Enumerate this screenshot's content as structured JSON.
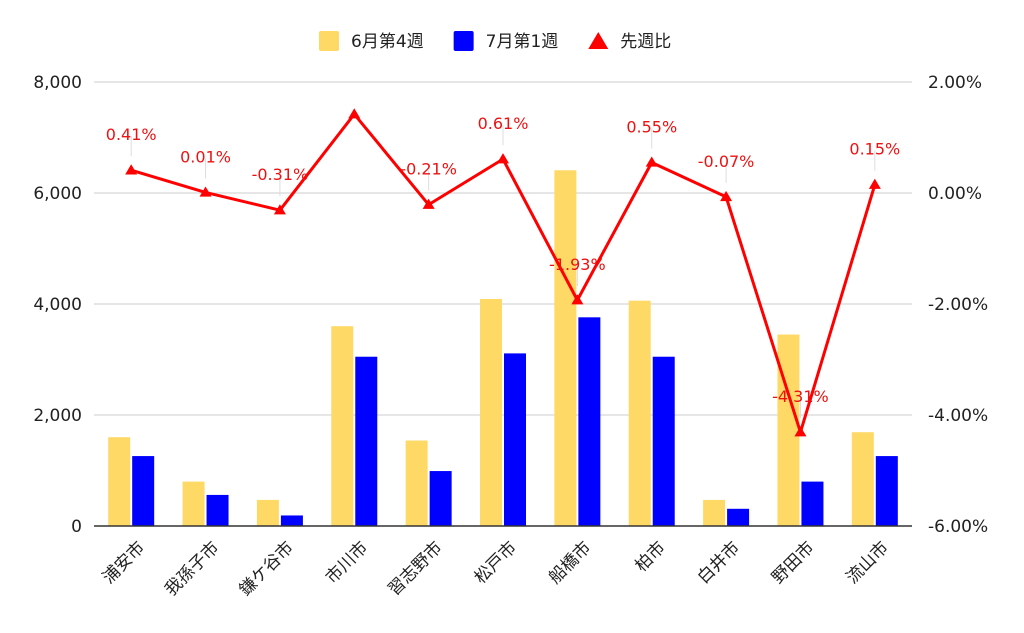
{
  "chart_data": {
    "type": "bar",
    "categories": [
      "浦安市",
      "我孫子市",
      "鎌ケ谷市",
      "市川市",
      "習志野市",
      "松戸市",
      "船橋市",
      "柏市",
      "白井市",
      "野田市",
      "流山市"
    ],
    "series": [
      {
        "name": "6月第4週",
        "type": "bar",
        "axis": "left",
        "color": "#ffd966",
        "values": [
          1600,
          800,
          470,
          3600,
          1540,
          4090,
          6410,
          4060,
          470,
          3450,
          1690
        ]
      },
      {
        "name": "7月第1週",
        "type": "bar",
        "axis": "left",
        "color": "#0000ff",
        "values": [
          1260,
          560,
          190,
          3050,
          990,
          3110,
          3760,
          3050,
          310,
          800,
          1260
        ]
      },
      {
        "name": "先週比",
        "type": "line",
        "axis": "right",
        "color": "#ff0000",
        "marker": "triangle",
        "values": [
          0.41,
          0.01,
          -0.31,
          1.42,
          -0.21,
          0.61,
          -1.93,
          0.55,
          -0.07,
          -4.31,
          0.15
        ],
        "labels": [
          "0.41%",
          "0.01%",
          "-0.31%",
          "",
          "-0.21%",
          "0.61%",
          "-1.93%",
          "0.55%",
          "-0.07%",
          "-4.31%",
          "0.15%"
        ]
      }
    ],
    "y_left": {
      "min": 0,
      "max": 8000,
      "ticks": [
        "0",
        "2,000",
        "4,000",
        "6,000",
        "8,000"
      ]
    },
    "y_right": {
      "min": -6,
      "max": 2,
      "ticks": [
        "-6.00%",
        "-4.00%",
        "-2.00%",
        "0.00%",
        "2.00%"
      ]
    },
    "grid": true,
    "legend": "top-center",
    "title": "",
    "xlabel": "",
    "ylabel": ""
  }
}
